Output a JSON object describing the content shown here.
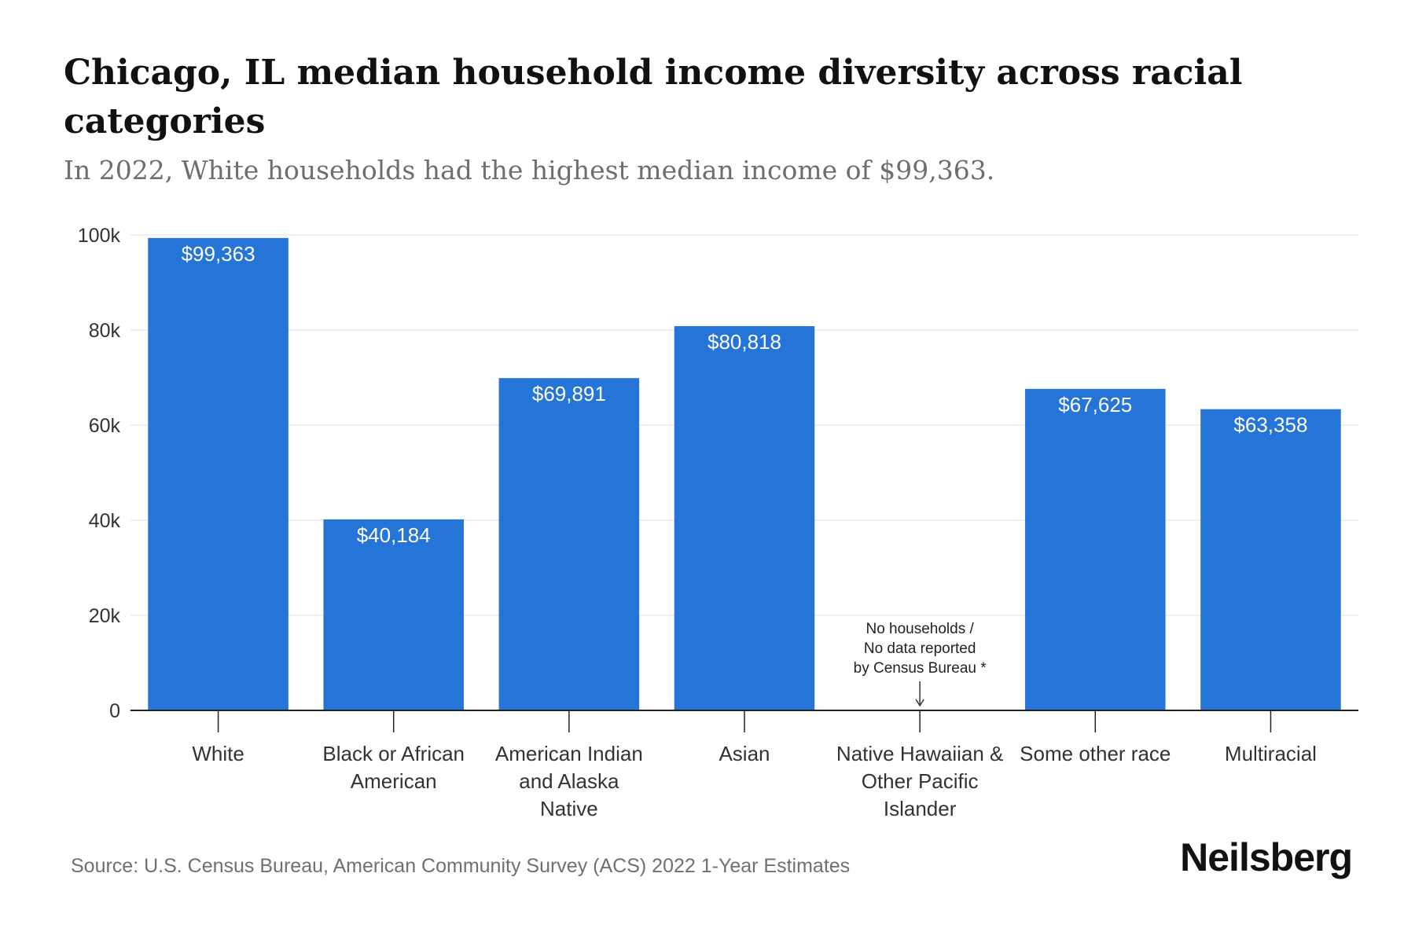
{
  "chart_data": {
    "type": "bar",
    "title": "Chicago, IL median household income diversity across racial categories",
    "subtitle": "In 2022, White households had the highest median income of $99,363.",
    "categories": [
      "White",
      "Black or African American",
      "American Indian and Alaska Native",
      "Asian",
      "Native Hawaiian & Other Pacific Islander",
      "Some other race",
      "Multiracial"
    ],
    "category_lines": [
      [
        "White"
      ],
      [
        "Black or African",
        "American"
      ],
      [
        "American Indian",
        "and Alaska",
        "Native"
      ],
      [
        "Asian"
      ],
      [
        "Native Hawaiian &",
        "Other Pacific",
        "Islander"
      ],
      [
        "Some other race"
      ],
      [
        "Multiracial"
      ]
    ],
    "values": [
      99363,
      40184,
      69891,
      80818,
      null,
      67625,
      63358
    ],
    "value_labels": [
      "$99,363",
      "$40,184",
      "$69,891",
      "$80,818",
      "",
      "$67,625",
      "$63,358"
    ],
    "yticks": [
      0,
      20000,
      40000,
      60000,
      80000,
      100000
    ],
    "ytick_labels": [
      "0",
      "20k",
      "40k",
      "60k",
      "80k",
      "100k"
    ],
    "ylim": [
      0,
      100000
    ],
    "grid": true,
    "bar_color": "#2574d8",
    "annotation": {
      "category_index": 4,
      "lines": [
        "No households /",
        "No data reported",
        "by Census Bureau *"
      ]
    }
  },
  "source": "Source: U.S. Census Bureau, American Community Survey (ACS) 2022 1-Year Estimates",
  "brand": "Neilsberg"
}
